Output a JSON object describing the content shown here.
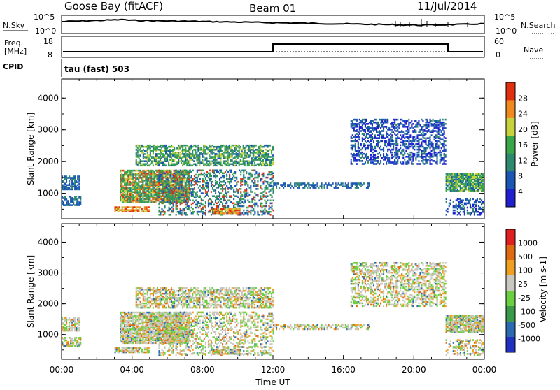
{
  "header": {
    "station": "Goose Bay (fitACF)",
    "beam": "Beam 01",
    "date": "11/Jul/2014"
  },
  "noise_panel": {
    "left_label": "N.Sky",
    "left_ticks": [
      "10^5",
      "10^0"
    ],
    "right_ticks": [
      "10^5",
      "10^0"
    ],
    "right_label": "N.Search"
  },
  "freq_panel": {
    "left_label_top": "Freq.",
    "left_label_bottom": "[MHz]",
    "left_ticks": [
      "18",
      "8"
    ],
    "right_ticks": [
      "60",
      "0"
    ],
    "right_label": "Nave",
    "cpid_label": "CPID",
    "mode_text": "tau (fast) 503"
  },
  "chart_data": [
    {
      "type": "heatmap",
      "quantity": "Power",
      "ylabel": "Slant Range [km]",
      "yticks": [
        "1000",
        "2000",
        "3000",
        "4000"
      ],
      "ylim": [
        200,
        4600
      ],
      "colorbar_label": "Power [dB]",
      "colorbar_ticks": [
        "28",
        "24",
        "20",
        "16",
        "12",
        "8",
        "4"
      ],
      "colorscale": [
        "#2020d0",
        "#1a56b4",
        "#2e8a6e",
        "#3aa64a",
        "#c8d23a",
        "#f08a1e",
        "#e03010"
      ],
      "grid": false
    },
    {
      "type": "heatmap",
      "quantity": "Velocity",
      "ylabel": "Slant Range [km]",
      "yticks": [
        "1000",
        "2000",
        "3000",
        "4000"
      ],
      "ylim": [
        200,
        4600
      ],
      "colorbar_label": "Velocity [m s-1]",
      "colorbar_ticks": [
        "1000",
        "500",
        "100",
        "25",
        "-25",
        "-100",
        "-500",
        "-1000"
      ],
      "colorscale": [
        "#2030c0",
        "#2a6ab0",
        "#3a9a4a",
        "#6ad040",
        "#c8c8c0",
        "#f0a020",
        "#e06a10",
        "#e02020"
      ],
      "grid": false
    }
  ],
  "xaxis": {
    "ticks": [
      "00:00",
      "04:00",
      "08:00",
      "12:00",
      "16:00",
      "20:00",
      "00:00"
    ],
    "label": "Time UT"
  }
}
